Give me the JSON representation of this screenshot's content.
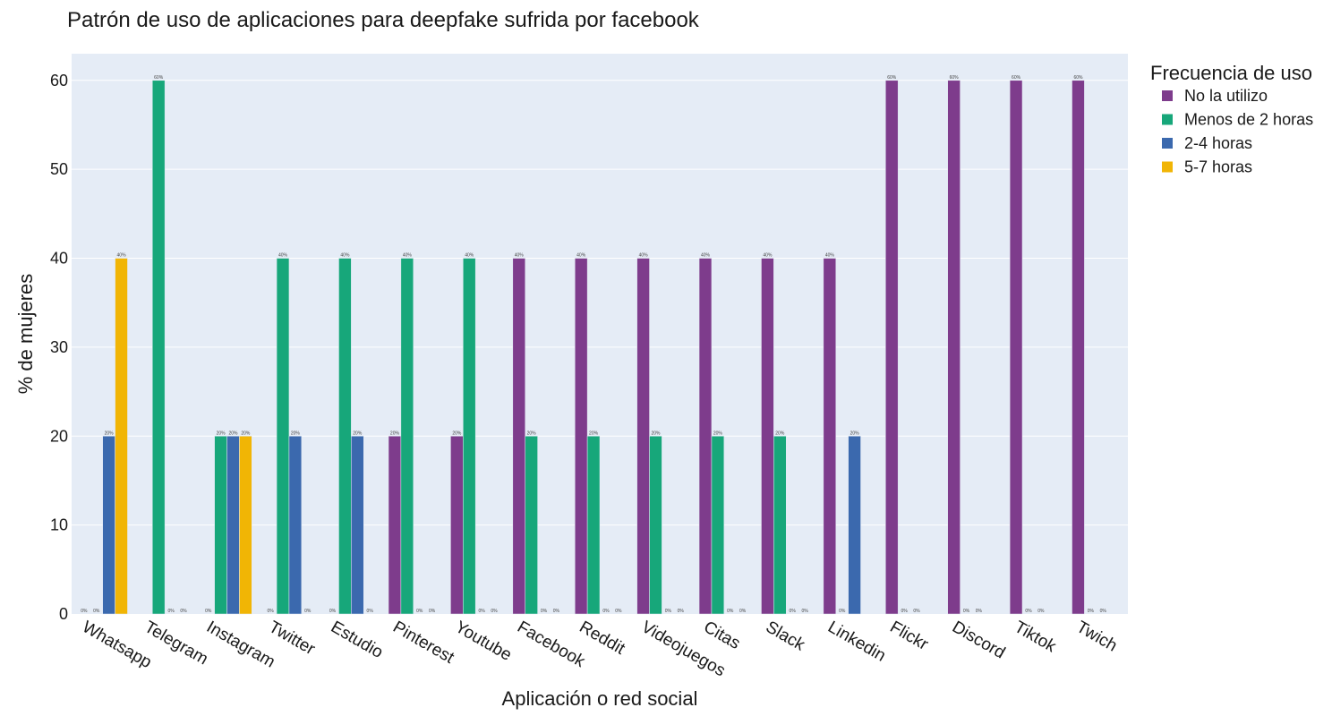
{
  "chart_data": {
    "type": "bar",
    "title": "Patrón de uso de aplicaciones para deepfake sufrida por facebook",
    "xlabel": "Aplicación o red social",
    "ylabel": "% de mujeres",
    "ylim": [
      0,
      63
    ],
    "yticks": [
      0,
      10,
      20,
      30,
      40,
      50,
      60
    ],
    "grid": true,
    "legend_title": "Frecuencia de uso",
    "legend_position": "top-right",
    "categories": [
      "Whatsapp",
      "Telegram",
      "Instagram",
      "Twitter",
      "Estudio",
      "Pinterest",
      "Youtube",
      "Facebook",
      "Reddit",
      "Videojuegos",
      "Citas",
      "Slack",
      "Linkedin",
      "Flickr",
      "Discord",
      "Tiktok",
      "Twich"
    ],
    "series": [
      {
        "name": "No la utilizo",
        "color": "#7e3c8c",
        "values": [
          0,
          null,
          0,
          0,
          0,
          20,
          20,
          40,
          40,
          40,
          40,
          40,
          40,
          60,
          60,
          60,
          60
        ],
        "labels": [
          "0%",
          "",
          "0%",
          "0%",
          "0%",
          "20%",
          "20%",
          "40%",
          "40%",
          "40%",
          "40%",
          "40%",
          "40%",
          "60%",
          "60%",
          "60%",
          "60%"
        ]
      },
      {
        "name": "Menos de 2 horas",
        "color": "#17a77a",
        "values": [
          0,
          60,
          20,
          40,
          40,
          40,
          40,
          20,
          20,
          20,
          20,
          20,
          0,
          0,
          0,
          0,
          0
        ],
        "labels": [
          "0%",
          "60%",
          "20%",
          "40%",
          "40%",
          "40%",
          "40%",
          "20%",
          "20%",
          "20%",
          "20%",
          "20%",
          "0%",
          "0%",
          "0%",
          "0%",
          "0%"
        ]
      },
      {
        "name": "2-4 horas",
        "color": "#3b69ae",
        "values": [
          20,
          0,
          20,
          20,
          20,
          0,
          0,
          0,
          0,
          0,
          0,
          0,
          20,
          0,
          0,
          0,
          0
        ],
        "labels": [
          "20%",
          "0%",
          "20%",
          "20%",
          "20%",
          "0%",
          "0%",
          "0%",
          "0%",
          "0%",
          "0%",
          "0%",
          "20%",
          "0%",
          "0%",
          "0%",
          "0%"
        ]
      },
      {
        "name": "5-7 horas",
        "color": "#f1b505",
        "values": [
          40,
          0,
          20,
          0,
          0,
          0,
          0,
          0,
          0,
          0,
          0,
          0,
          null,
          null,
          null,
          null,
          null
        ],
        "labels": [
          "40%",
          "0%",
          "20%",
          "0%",
          "0%",
          "0%",
          "0%",
          "0%",
          "0%",
          "0%",
          "0%",
          "0%",
          "",
          "",
          "",
          "",
          ""
        ]
      }
    ]
  }
}
